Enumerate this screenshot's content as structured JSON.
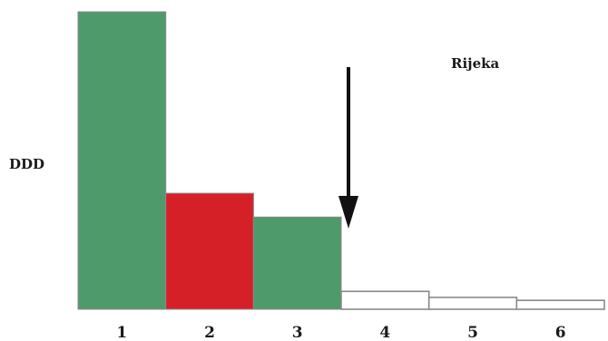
{
  "chart_data": {
    "type": "bar",
    "title": "Rijeka",
    "xlabel": "",
    "ylabel": "DDD",
    "categories": [
      "1",
      "2",
      "3",
      "4",
      "5",
      "6"
    ],
    "values": [
      100,
      39,
      31,
      6,
      4,
      3
    ],
    "ylim": [
      0,
      100
    ],
    "grid": false,
    "bar_colors": [
      "#4e9a6b",
      "#d62027",
      "#4e9a6b",
      "#ffffff",
      "#ffffff",
      "#ffffff"
    ],
    "bar_outline": "#8a8a8a",
    "annotations": [
      {
        "type": "arrow",
        "between": [
          "3",
          "4"
        ],
        "direction": "down",
        "color": "#111111"
      }
    ]
  }
}
